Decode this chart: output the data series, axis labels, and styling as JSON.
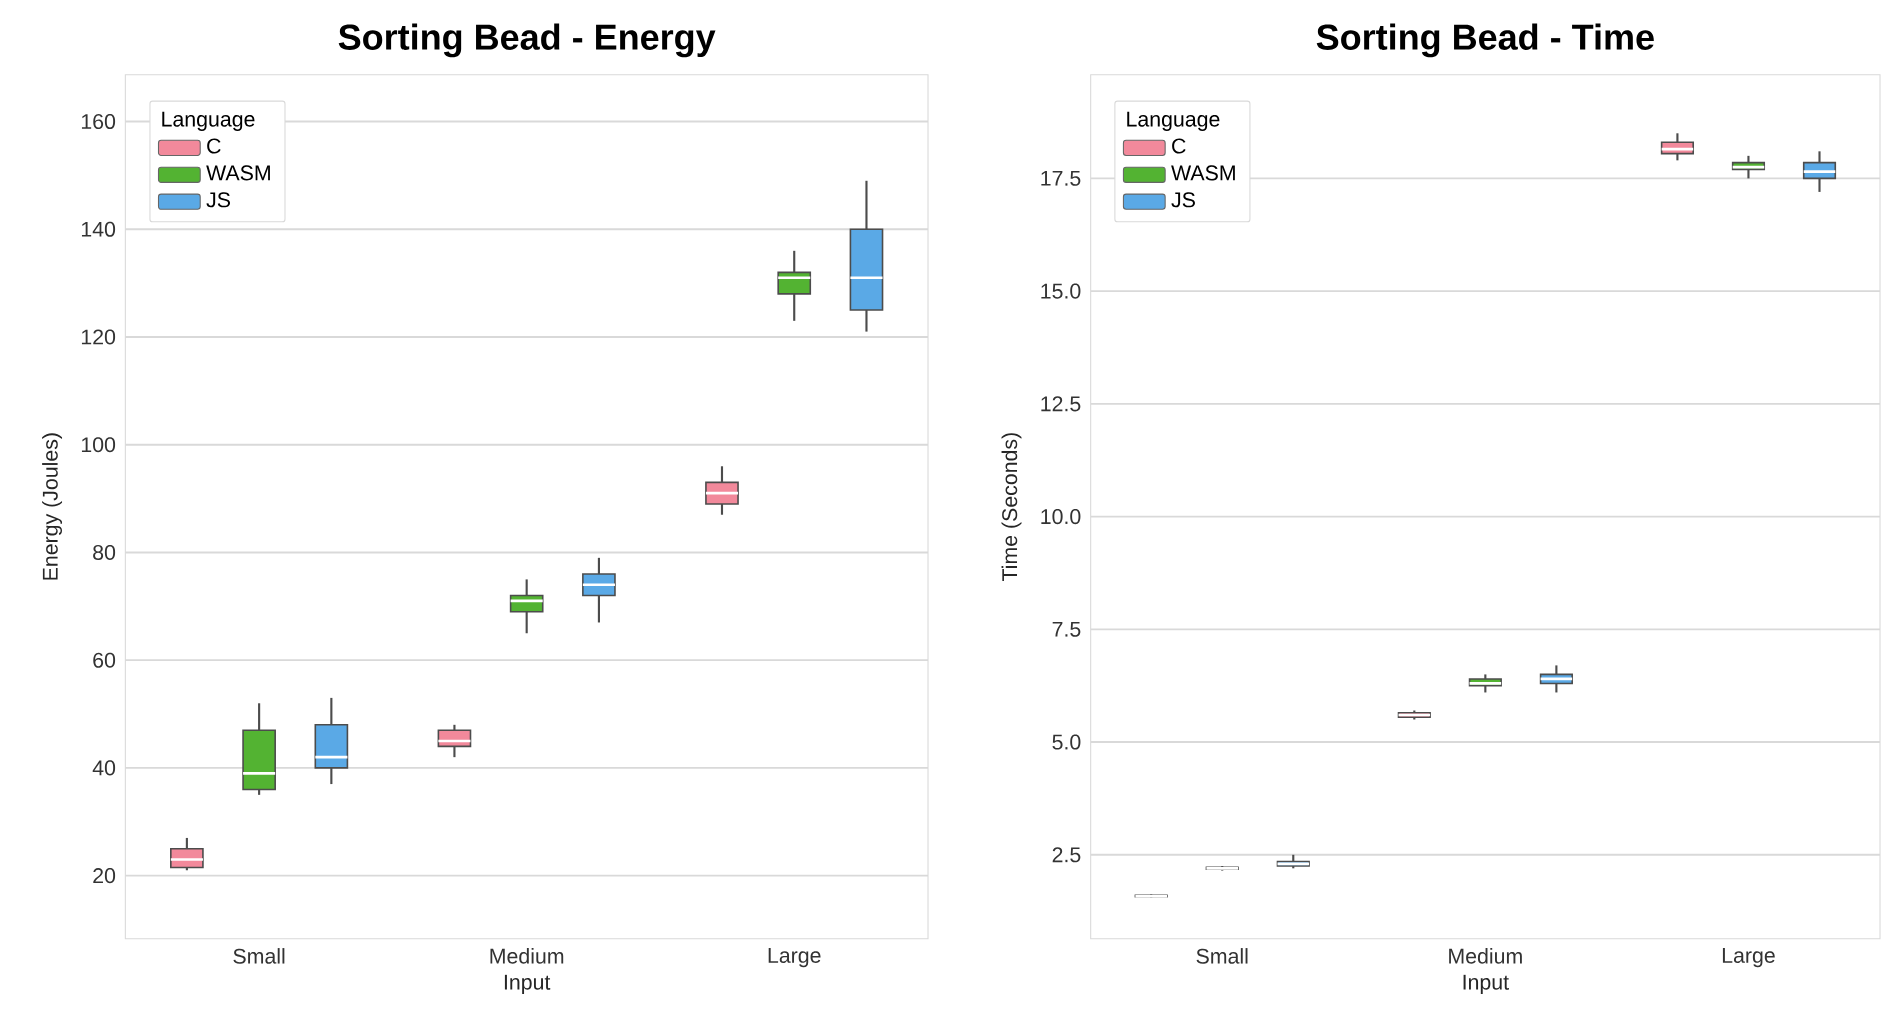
{
  "chart_data": [
    {
      "type": "box",
      "title": "Sorting Bead - Energy",
      "xlabel": "Input",
      "ylabel": "Energy (Joules)",
      "legend_title": "Language",
      "legend": "top left",
      "grid": "y",
      "categories": [
        "Small",
        "Medium",
        "Large"
      ],
      "ylim": [
        8.3,
        168.7
      ],
      "yticks": [
        20,
        40,
        60,
        80,
        100,
        120,
        140,
        160
      ],
      "series": [
        {
          "name": "C",
          "color": "#f2899b",
          "boxes": [
            {
              "low": 21,
              "q1": 21.5,
              "median": 23,
              "q3": 25,
              "high": 27
            },
            {
              "low": 42,
              "q1": 44,
              "median": 45,
              "q3": 47,
              "high": 48
            },
            {
              "low": 87,
              "q1": 89,
              "median": 91,
              "q3": 93,
              "high": 96
            }
          ]
        },
        {
          "name": "WASM",
          "color": "#53b332",
          "boxes": [
            {
              "low": 35,
              "q1": 36,
              "median": 39,
              "q3": 47,
              "high": 52
            },
            {
              "low": 65,
              "q1": 69,
              "median": 71,
              "q3": 72,
              "high": 75
            },
            {
              "low": 123,
              "q1": 128,
              "median": 131,
              "q3": 132,
              "high": 136
            }
          ]
        },
        {
          "name": "JS",
          "color": "#5aa9e6",
          "boxes": [
            {
              "low": 37,
              "q1": 40,
              "median": 42,
              "q3": 48,
              "high": 53
            },
            {
              "low": 67,
              "q1": 72,
              "median": 74,
              "q3": 76,
              "high": 79
            },
            {
              "low": 121,
              "q1": 125,
              "median": 131,
              "q3": 140,
              "high": 149
            }
          ]
        }
      ]
    },
    {
      "type": "box",
      "title": "Sorting Bead - Time",
      "xlabel": "Input",
      "ylabel": "Time (Seconds)",
      "legend_title": "Language",
      "legend": "top left",
      "grid": "y",
      "categories": [
        "Small",
        "Medium",
        "Large"
      ],
      "ylim": [
        0.64,
        19.8
      ],
      "yticks": [
        {
          "value": 2.5,
          "label": "2.5"
        },
        {
          "value": 5,
          "label": "5.0"
        },
        {
          "value": 7.5,
          "label": "7.5"
        },
        {
          "value": 10,
          "label": "10.0"
        },
        {
          "value": 12.5,
          "label": "12.5"
        },
        {
          "value": 15,
          "label": "15.0"
        },
        {
          "value": 17.5,
          "label": "17.5"
        }
      ],
      "series": [
        {
          "name": "C",
          "color": "#f2899b",
          "boxes": [
            {
              "low": 1.55,
              "q1": 1.57,
              "median": 1.58,
              "q3": 1.6,
              "high": 1.62
            },
            {
              "low": 5.5,
              "q1": 5.55,
              "median": 5.6,
              "q3": 5.65,
              "high": 5.7
            },
            {
              "low": 17.9,
              "q1": 18.05,
              "median": 18.15,
              "q3": 18.3,
              "high": 18.5
            }
          ]
        },
        {
          "name": "WASM",
          "color": "#53b332",
          "boxes": [
            {
              "low": 2.15,
              "q1": 2.18,
              "median": 2.2,
              "q3": 2.22,
              "high": 2.25
            },
            {
              "low": 6.1,
              "q1": 6.25,
              "median": 6.3,
              "q3": 6.4,
              "high": 6.5
            },
            {
              "low": 17.5,
              "q1": 17.7,
              "median": 17.75,
              "q3": 17.85,
              "high": 18.0
            }
          ]
        },
        {
          "name": "JS",
          "color": "#5aa9e6",
          "boxes": [
            {
              "low": 2.2,
              "q1": 2.25,
              "median": 2.3,
              "q3": 2.35,
              "high": 2.5
            },
            {
              "low": 6.1,
              "q1": 6.3,
              "median": 6.4,
              "q3": 6.5,
              "high": 6.7
            },
            {
              "low": 17.2,
              "q1": 17.5,
              "median": 17.65,
              "q3": 17.85,
              "high": 18.1
            }
          ]
        }
      ]
    }
  ]
}
